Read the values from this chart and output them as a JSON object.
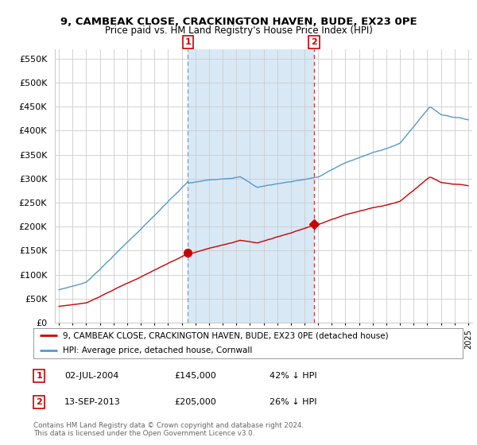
{
  "title": "9, CAMBEAK CLOSE, CRACKINGTON HAVEN, BUDE, EX23 0PE",
  "subtitle": "Price paid vs. HM Land Registry's House Price Index (HPI)",
  "ylim": [
    0,
    570000
  ],
  "yticks": [
    0,
    50000,
    100000,
    150000,
    200000,
    250000,
    300000,
    350000,
    400000,
    450000,
    500000,
    550000
  ],
  "ytick_labels": [
    "£0",
    "£50K",
    "£100K",
    "£150K",
    "£200K",
    "£250K",
    "£300K",
    "£350K",
    "£400K",
    "£450K",
    "£500K",
    "£550K"
  ],
  "sale1_date": 2004.45,
  "sale1_price": 145000,
  "sale2_date": 2013.7,
  "sale2_price": 205000,
  "red_line_color": "#cc0000",
  "blue_line_color": "#5599cc",
  "shade_color": "#d8e8f5",
  "marker_color": "#cc0000",
  "legend_red_label": "9, CAMBEAK CLOSE, CRACKINGTON HAVEN, BUDE, EX23 0PE (detached house)",
  "legend_blue_label": "HPI: Average price, detached house, Cornwall",
  "note1_date": "02-JUL-2004",
  "note1_price": "£145,000",
  "note1_hpi": "42% ↓ HPI",
  "note2_date": "13-SEP-2013",
  "note2_price": "£205,000",
  "note2_hpi": "26% ↓ HPI",
  "copyright_text": "Contains HM Land Registry data © Crown copyright and database right 2024.\nThis data is licensed under the Open Government Licence v3.0.",
  "background_color": "#ffffff",
  "plot_bg_color": "#ffffff",
  "grid_color": "#cccccc"
}
